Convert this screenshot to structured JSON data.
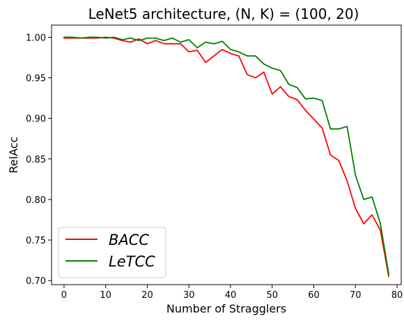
{
  "chart_data": {
    "type": "line",
    "title": "LeNet5 architecture, (N, K) = (100, 20)",
    "xlabel": "Number of Stragglers",
    "ylabel": "RelAcc",
    "xlim": [
      -3,
      81
    ],
    "ylim": [
      0.695,
      1.015
    ],
    "xticks": [
      0,
      10,
      20,
      30,
      40,
      50,
      60,
      70,
      80
    ],
    "yticks": [
      0.7,
      0.75,
      0.8,
      0.85,
      0.9,
      0.95,
      1.0
    ],
    "xtick_labels": [
      "0",
      "10",
      "20",
      "30",
      "40",
      "50",
      "60",
      "70",
      "80"
    ],
    "ytick_labels": [
      "0.70",
      "0.75",
      "0.80",
      "0.85",
      "0.90",
      "0.95",
      "1.00"
    ],
    "grid": false,
    "legend_position": "lower-left",
    "x": [
      0,
      2,
      4,
      6,
      8,
      10,
      12,
      14,
      16,
      18,
      20,
      22,
      24,
      26,
      28,
      30,
      32,
      34,
      36,
      38,
      40,
      42,
      44,
      46,
      48,
      50,
      52,
      54,
      56,
      58,
      60,
      62,
      64,
      66,
      68,
      70,
      72,
      74,
      76,
      78
    ],
    "series": [
      {
        "name": "BACC",
        "color": "#ff0000",
        "values": [
          0.999,
          0.999,
          0.999,
          0.999,
          0.999,
          1.0,
          0.999,
          0.996,
          0.994,
          0.998,
          0.992,
          0.996,
          0.992,
          0.992,
          0.992,
          0.982,
          0.984,
          0.969,
          0.977,
          0.985,
          0.98,
          0.977,
          0.954,
          0.95,
          0.957,
          0.93,
          0.939,
          0.927,
          0.923,
          0.91,
          0.899,
          0.888,
          0.855,
          0.848,
          0.823,
          0.789,
          0.77,
          0.781,
          0.762,
          0.705
        ]
      },
      {
        "name": "LeTCC",
        "color": "#008000",
        "values": [
          1.0,
          1.0,
          0.999,
          1.0,
          1.0,
          0.999,
          1.0,
          0.997,
          0.999,
          0.996,
          0.999,
          0.999,
          0.996,
          0.999,
          0.994,
          0.997,
          0.987,
          0.994,
          0.992,
          0.995,
          0.985,
          0.982,
          0.977,
          0.977,
          0.967,
          0.962,
          0.959,
          0.942,
          0.938,
          0.924,
          0.925,
          0.922,
          0.887,
          0.887,
          0.89,
          0.83,
          0.8,
          0.803,
          0.77,
          0.708
        ]
      }
    ]
  }
}
